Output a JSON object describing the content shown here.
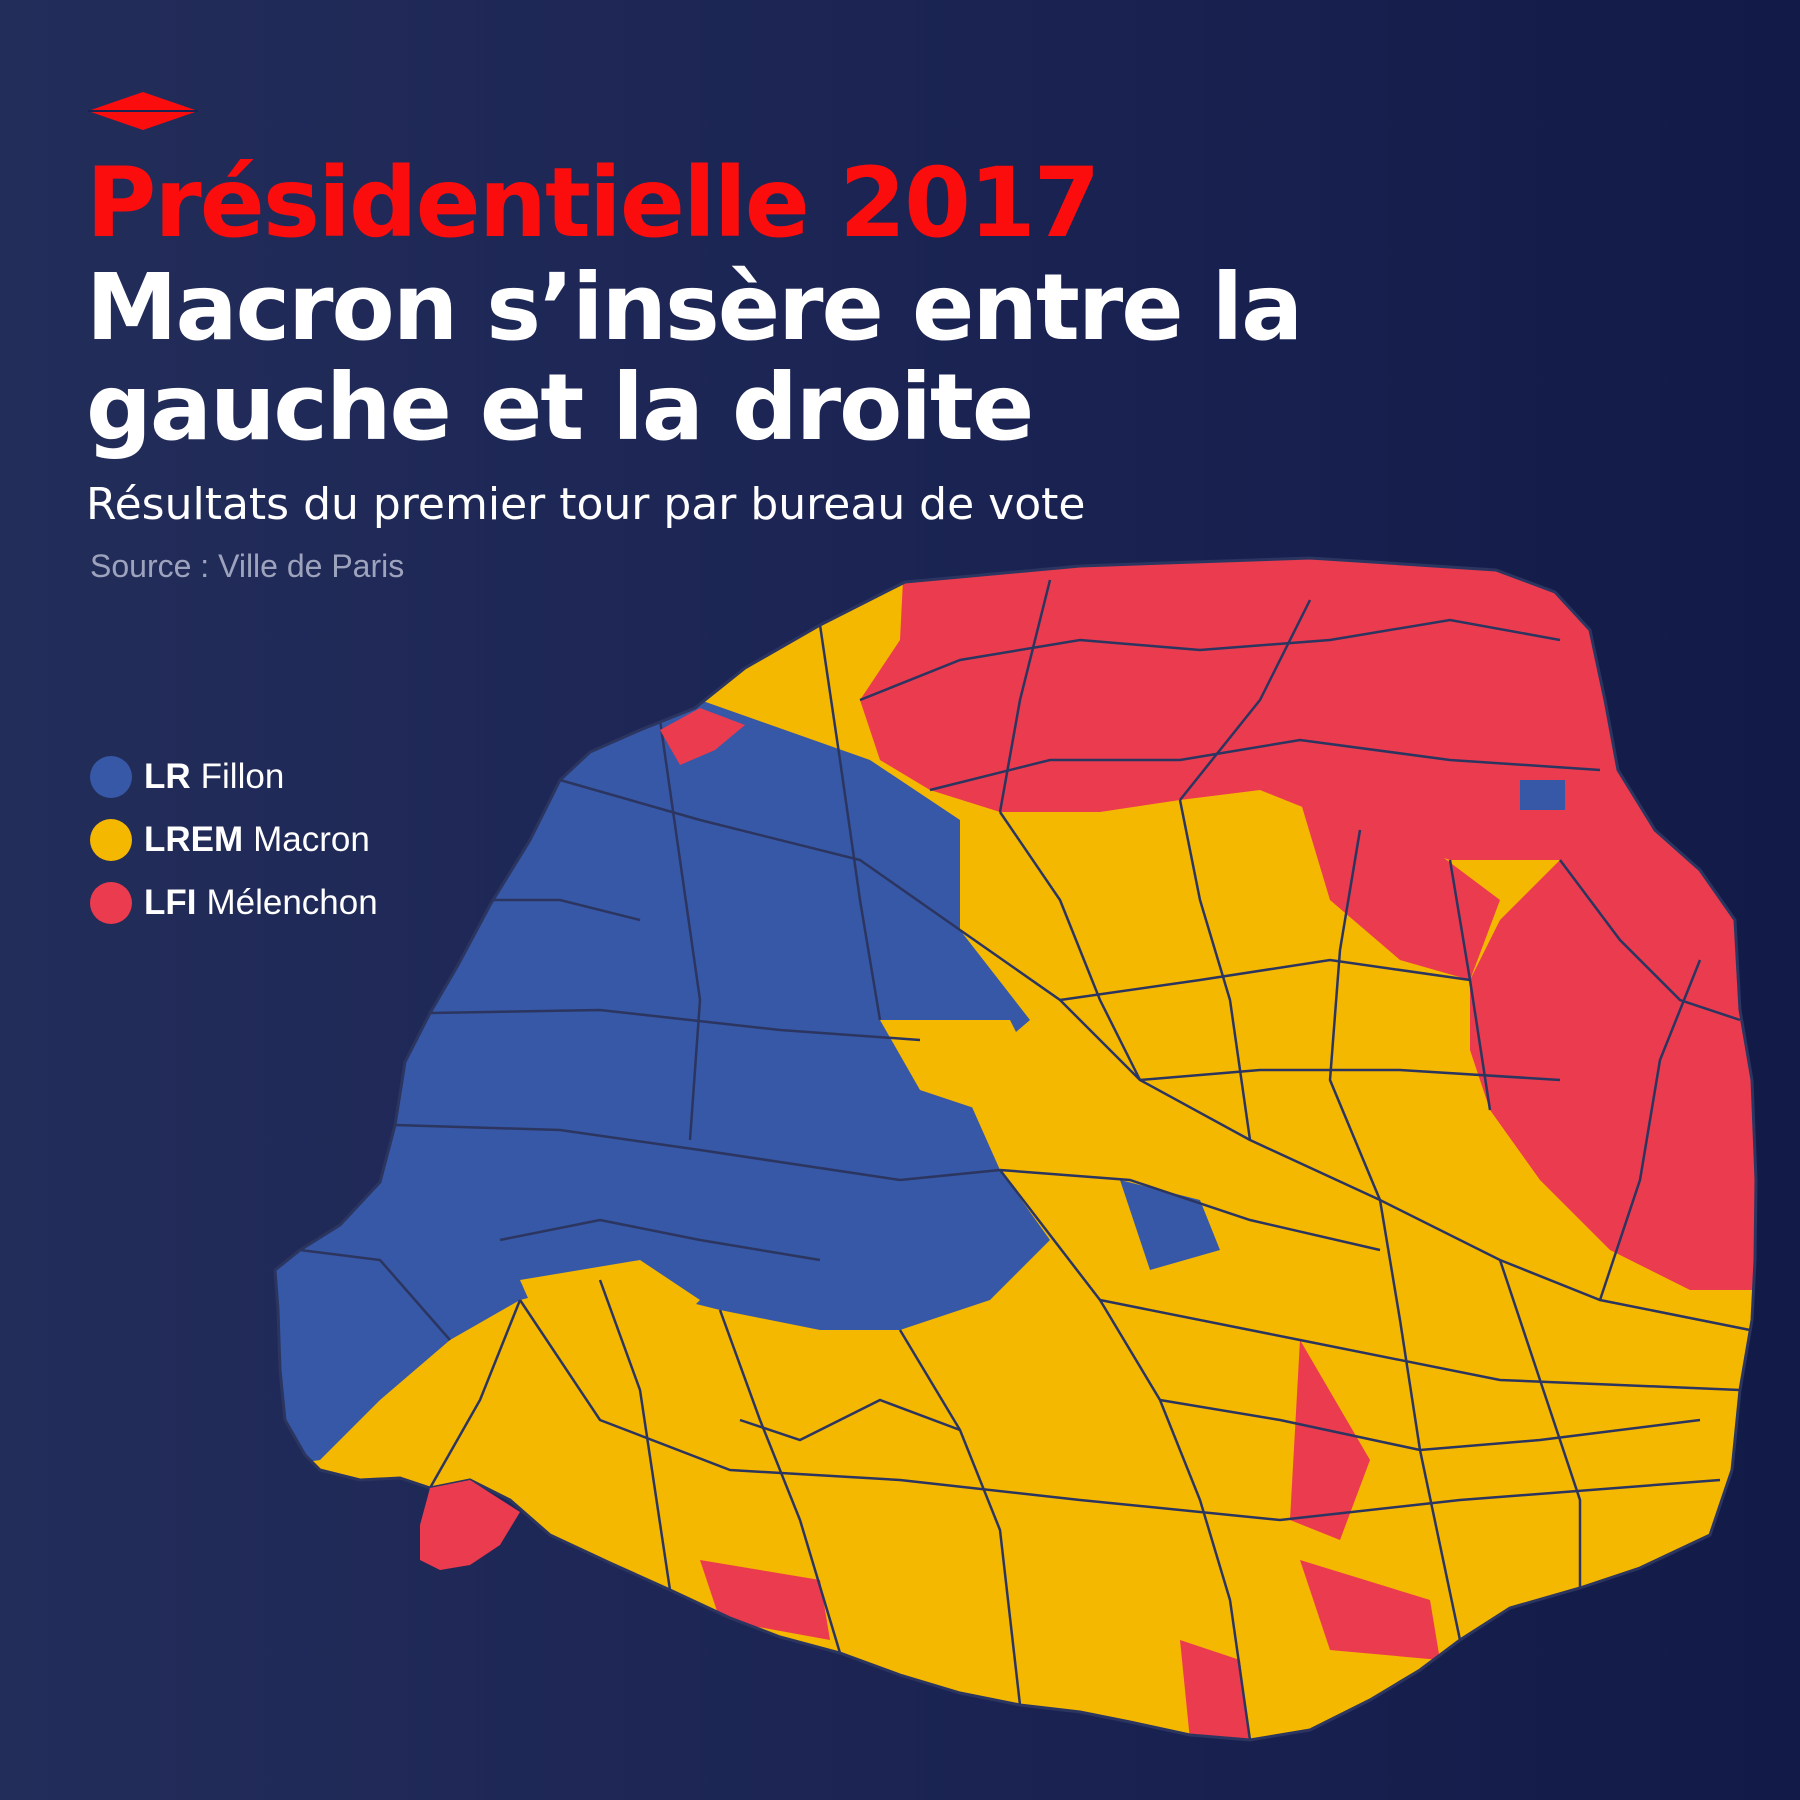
{
  "overtitle": "Présidentielle 2017",
  "title": "Macron s’insère entre la gauche et la droite",
  "subtitle": "Résultats du premier tour par bureau de vote",
  "source": "Source : Ville de Paris",
  "colors": {
    "brand_red": "#fb0d0d",
    "background": "#1a2352",
    "boundary": "#2b3560"
  },
  "legend": [
    {
      "party": "LR",
      "candidate": "Fillon",
      "color": "#3758a6"
    },
    {
      "party": "LREM",
      "candidate": "Macron",
      "color": "#f5b800"
    },
    {
      "party": "LFI",
      "candidate": "Mélenchon",
      "color": "#ea3b4f"
    }
  ],
  "map": {
    "subject": "Paris, bureaux de vote",
    "winner_by_area": {
      "west": "LR",
      "north-west": "LR",
      "north": "LFI",
      "north-east": "LFI",
      "east": "LFI",
      "centre": "LREM",
      "south": "LREM",
      "south-east": "LREM"
    }
  }
}
